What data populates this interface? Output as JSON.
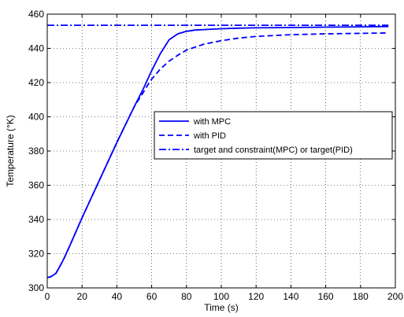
{
  "chart_data": {
    "type": "line",
    "xlabel": "Time (s)",
    "ylabel": "Temperature (°K)",
    "xlim": [
      0,
      200
    ],
    "ylim": [
      300,
      460
    ],
    "xticks": [
      0,
      20,
      40,
      60,
      80,
      100,
      120,
      140,
      160,
      180,
      200
    ],
    "yticks": [
      300,
      320,
      340,
      360,
      380,
      400,
      420,
      440,
      460
    ],
    "grid": true,
    "legend_position": "center-right",
    "line_color": "#0000ff",
    "series": [
      {
        "name": "with MPC",
        "style": "solid",
        "x": [
          0,
          2,
          5,
          8,
          10,
          14,
          20,
          30,
          40,
          50,
          55,
          60,
          65,
          70,
          75,
          80,
          85,
          90,
          100,
          110,
          120,
          140,
          160,
          180,
          196
        ],
        "y": [
          306,
          306.5,
          308.5,
          314,
          318,
          327,
          341,
          363,
          385,
          406,
          416,
          427,
          437,
          445,
          448.5,
          450,
          450.7,
          451,
          451.5,
          451.8,
          452,
          452.2,
          452.4,
          452.6,
          452.8
        ]
      },
      {
        "name": "with PID",
        "style": "dashed",
        "x": [
          0,
          2,
          5,
          8,
          10,
          14,
          20,
          30,
          40,
          50,
          55,
          58,
          60,
          65,
          70,
          75,
          80,
          90,
          100,
          110,
          120,
          140,
          160,
          180,
          196
        ],
        "y": [
          306,
          306.5,
          308.5,
          314,
          318,
          327,
          341,
          363,
          385,
          406,
          414,
          419,
          422,
          428,
          432.5,
          436,
          439,
          442.5,
          444.5,
          446,
          447,
          448,
          448.5,
          448.8,
          449
        ]
      },
      {
        "name": "target and constraint(MPC) or target(PID)",
        "style": "dashdot",
        "x": [
          0,
          196
        ],
        "y": [
          453.5,
          453.5
        ]
      }
    ]
  }
}
